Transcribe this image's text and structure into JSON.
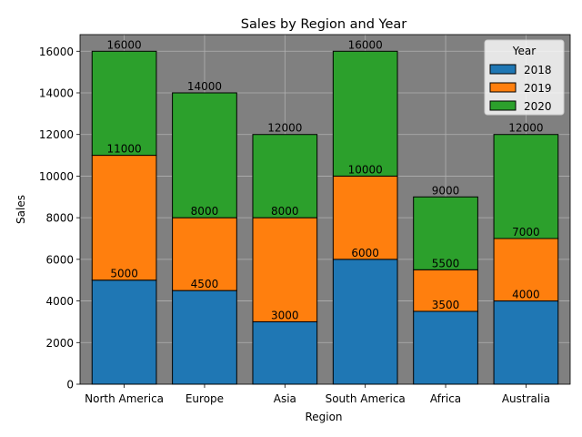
{
  "chart_data": {
    "type": "bar",
    "stacked": true,
    "title": "Sales by Region and Year",
    "xlabel": "Region",
    "ylabel": "Sales",
    "categories": [
      "North America",
      "Europe",
      "Asia",
      "South America",
      "Africa",
      "Australia"
    ],
    "ylim": [
      0,
      16800
    ],
    "yticks": [
      "0",
      "2000",
      "4000",
      "6000",
      "8000",
      "10000",
      "12000",
      "14000",
      "16000"
    ],
    "grid": true,
    "legend": {
      "title": "Year",
      "position": "top-right"
    },
    "series": [
      {
        "name": "2018",
        "color": "#1f77b4",
        "values": [
          5000,
          4500,
          3000,
          6000,
          3500,
          4000
        ]
      },
      {
        "name": "2019",
        "color": "#ff7f0e",
        "values": [
          6000,
          3500,
          5000,
          4000,
          2000,
          3000
        ]
      },
      {
        "name": "2020",
        "color": "#2ca02c",
        "values": [
          5000,
          6000,
          4000,
          6000,
          3500,
          5000
        ]
      }
    ],
    "data_labels": [
      [
        "5000",
        "4500",
        "3000",
        "6000",
        "3500",
        "4000"
      ],
      [
        "11000",
        "8000",
        "8000",
        "10000",
        "5500",
        "7000"
      ],
      [
        "16000",
        "14000",
        "12000",
        "16000",
        "9000",
        "12000"
      ]
    ],
    "plot_background": "#808080"
  }
}
